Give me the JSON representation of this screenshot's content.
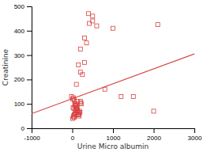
{
  "chart_data": {
    "type": "scatter",
    "xlabel": "Urine Micro albumin",
    "ylabel": "Creatinine",
    "xlim": [
      -1000,
      3000
    ],
    "ylim": [
      0,
      500
    ],
    "xticks": [
      -1000,
      0,
      1000,
      2000,
      3000
    ],
    "yticks": [
      0,
      100,
      200,
      300,
      400,
      500
    ],
    "series": [
      {
        "type": "scatter",
        "marker": "square",
        "color": "#d94040",
        "x": [
          -20,
          10,
          30,
          50,
          70,
          80,
          90,
          100,
          110,
          120,
          130,
          140,
          150,
          160,
          170,
          180,
          190,
          200,
          210,
          220,
          20,
          40,
          60,
          80,
          100,
          120,
          50,
          70,
          90,
          110,
          30,
          50,
          10,
          40,
          60,
          80,
          100,
          120,
          140,
          160,
          150,
          200,
          250,
          300,
          350,
          400,
          500,
          600,
          800,
          1000,
          1200,
          1500,
          2000,
          2100,
          100,
          200,
          300,
          420,
          500
        ],
        "values": [
          130,
          120,
          125,
          115,
          100,
          95,
          90,
          85,
          80,
          75,
          70,
          65,
          60,
          55,
          50,
          70,
          65,
          110,
          105,
          100,
          85,
          80,
          95,
          100,
          90,
          110,
          55,
          60,
          65,
          55,
          50,
          45,
          40,
          45,
          55,
          75,
          80,
          85,
          55,
          65,
          260,
          230,
          220,
          370,
          350,
          470,
          440,
          420,
          160,
          410,
          130,
          130,
          70,
          425,
          180,
          325,
          270,
          430,
          460
        ]
      },
      {
        "type": "line",
        "line_style": "solid",
        "color": "#d94040",
        "x": [
          -1000,
          3000
        ],
        "values": [
          60,
          305
        ]
      }
    ]
  }
}
